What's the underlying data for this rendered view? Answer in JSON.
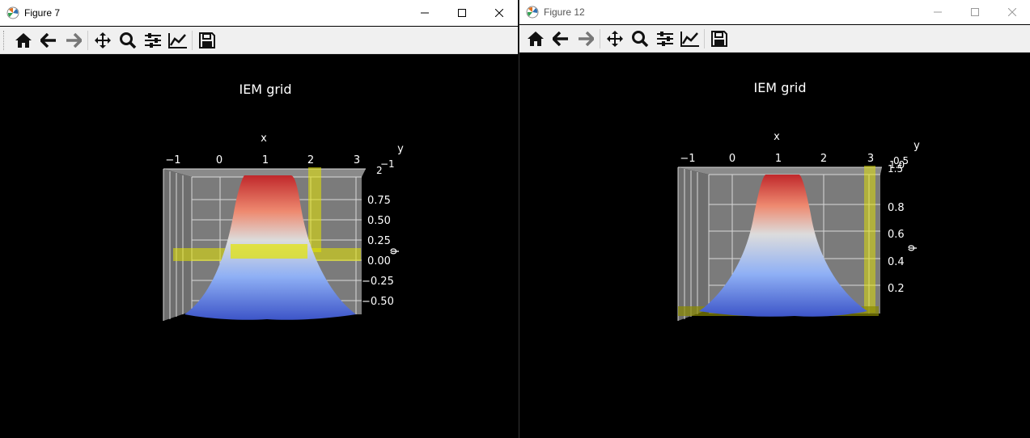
{
  "windows": [
    {
      "title": "Figure 7",
      "plot": {
        "title": "IEM grid",
        "xlabel": "x",
        "ylabel": "y",
        "zlabel": "φ",
        "x_ticks": [
          "−1",
          "0",
          "1",
          "2",
          "3"
        ],
        "y_ticks": [
          "−1",
          "2"
        ],
        "z_ticks": [
          "0.75",
          "0.50",
          "0.25",
          "0.00",
          "−0.25",
          "−0.50"
        ]
      }
    },
    {
      "title": "Figure 12",
      "plot": {
        "title": "IEM grid",
        "xlabel": "x",
        "ylabel": "y",
        "zlabel": "φ",
        "x_ticks": [
          "−1",
          "0",
          "1",
          "2",
          "3"
        ],
        "y_ticks": [
          "0.5",
          "1.0",
          "1.5"
        ],
        "z_ticks": [
          "0.8",
          "0.6",
          "0.4",
          "0.2"
        ]
      }
    }
  ],
  "toolbar": [
    "home-icon",
    "back-icon",
    "forward-icon",
    "pan-icon",
    "zoom-icon",
    "configure-subplots-icon",
    "edit-axes-icon",
    "save-icon"
  ],
  "colors": {
    "surface_top": "#c0282b",
    "surface_mid": "#dddcdc",
    "surface_bottom": "#3d55c8",
    "pane": "#7a7a7a",
    "highlight": "#ffff00"
  }
}
